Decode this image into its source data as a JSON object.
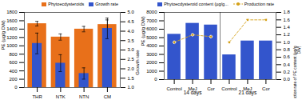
{
  "chart_data": [
    {
      "type": "bar",
      "categories": [
        "THR",
        "NTK",
        "NTN",
        "CM"
      ],
      "series": [
        {
          "name": "Phytoecdysteroids",
          "color": "#E8701A",
          "values": [
            1530,
            1210,
            1400,
            1510
          ],
          "errors": [
            55,
            75,
            65,
            110
          ]
        },
        {
          "name": "Growth rate",
          "color": "#3355CC",
          "axis": "y2",
          "values": [
            3.35,
            2.3,
            1.75,
            4.15
          ],
          "errors": [
            0.55,
            0.45,
            0.3,
            0.55
          ]
        }
      ],
      "ylabel": "PE (µg/g DW)",
      "y2label": "Growth rate",
      "ylim": [
        0,
        1800
      ],
      "yticks": [
        0,
        200,
        400,
        600,
        800,
        1000,
        1200,
        1400,
        1600,
        1800
      ],
      "y2lim": [
        1.0,
        5.0
      ],
      "y2ticks": [
        {
          "value": 1.0,
          "label": "1.0"
        },
        1.5,
        {
          "value": 2.0,
          "label": "2.0"
        },
        2.5,
        {
          "value": 3.0,
          "label": "3.0"
        },
        3.5,
        {
          "value": 4.0,
          "label": "4.0"
        },
        4.5,
        {
          "value": 5.0,
          "label": "5.0"
        }
      ],
      "legend": "upper right"
    },
    {
      "type": "bar",
      "categories": [
        "Control",
        "MeJ",
        "Cor",
        "Control",
        "MeJ",
        "Cor"
      ],
      "series": [
        {
          "name": "Phytoecdysteroid content (µg/g...",
          "color": "#3355CC",
          "values": [
            5400,
            6700,
            6500,
            2950,
            4600,
            4600
          ]
        },
        {
          "name": "Production rate",
          "type": "line",
          "color": "#D4A017",
          "axis": "y2",
          "marker": "circle",
          "line_style": "dashed",
          "values": [
            1.0,
            1.2,
            1.15,
            1.0,
            1.6,
            1.6
          ]
        }
      ],
      "ylabel": "PE (µg/g DW)",
      "y2label": "Production rate of PE content (µg/g\nDW)",
      "ylim": [
        0,
        8000
      ],
      "yticks": [
        0,
        1000,
        2000,
        3000,
        4000,
        5000,
        6000,
        7000,
        8000
      ],
      "y2lim": [
        0,
        1.8
      ],
      "y2ticks": [
        {
          "value": 0.0,
          "label": "0.0"
        },
        0.2,
        0.4,
        0.6,
        0.8,
        {
          "value": 1.0,
          "label": "1.0"
        },
        1.2,
        1.4,
        1.6,
        1.8
      ],
      "annotations": [
        "14 days",
        "21 days"
      ],
      "legend": "upper right"
    }
  ]
}
